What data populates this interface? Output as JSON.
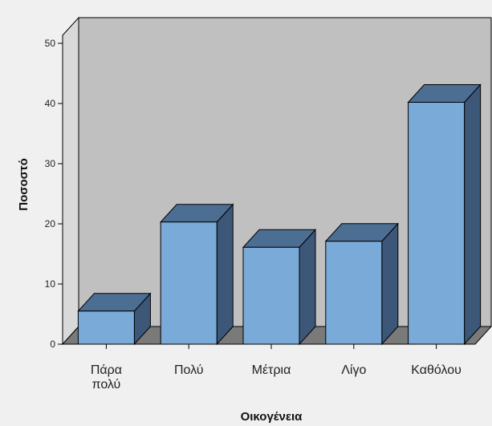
{
  "chart_data": {
    "type": "bar",
    "categories": [
      [
        "Πάρα",
        "πολύ"
      ],
      [
        "Πολύ"
      ],
      [
        "Μέτρια"
      ],
      [
        "Λίγο"
      ],
      [
        "Καθόλου"
      ]
    ],
    "values": [
      5.5,
      20.3,
      16.1,
      17.1,
      40.2
    ],
    "xlabel": "Οικογένεια",
    "ylabel": "Ποσοστό",
    "ylim": [
      0,
      50
    ],
    "yticks": [
      0,
      10,
      20,
      30,
      40,
      50
    ],
    "grid": false,
    "legend": "none",
    "style": "3d-bar",
    "colors": {
      "background": "#f0f0f0",
      "back_wall": "#c0c0c0",
      "floor": "#7a7a7a",
      "bar_front": "#7aaad8",
      "bar_top": "#4d6e93",
      "bar_side": "#3c5778",
      "outline": "#000000"
    }
  }
}
